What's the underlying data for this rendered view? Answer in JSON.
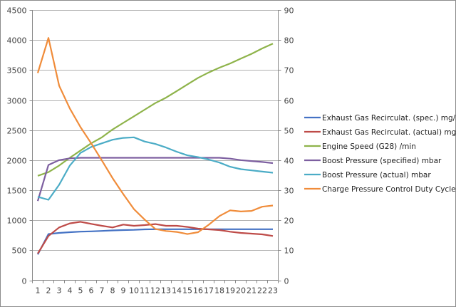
{
  "chart_data": {
    "type": "line",
    "title": "",
    "xlabel": "",
    "ylabel": "",
    "categories": [
      "1",
      "2",
      "3",
      "4",
      "5",
      "6",
      "7",
      "8",
      "9",
      "10",
      "11",
      "12",
      "13",
      "14",
      "15",
      "16",
      "17",
      "18",
      "19",
      "20",
      "21",
      "22",
      "23"
    ],
    "ylim": [
      0,
      4500
    ],
    "yticks": [
      "0",
      "500",
      "1000",
      "1500",
      "2000",
      "2500",
      "3000",
      "3500",
      "4000",
      "4500"
    ],
    "y2lim": [
      0,
      90
    ],
    "y2ticks": [
      "0",
      "10",
      "20",
      "30",
      "40",
      "50",
      "60",
      "70",
      "80",
      "90"
    ],
    "grid": true,
    "legend_position": "right",
    "series": [
      {
        "name": "Exhaust Gas Recirculat. (spec.)  mg/str",
        "color": "#4472c4",
        "axis": "left",
        "values": [
          430,
          770,
          789,
          800,
          810,
          815,
          822,
          830,
          836,
          840,
          848,
          850,
          850,
          850,
          850,
          850,
          850,
          850,
          850,
          850,
          850,
          850,
          850
        ]
      },
      {
        "name": "Exhaust Gas Recirculat. (actual)  mg/str",
        "color": "#be4b48",
        "axis": "left",
        "values": [
          445,
          738,
          880,
          947,
          974,
          939,
          907,
          880,
          927,
          907,
          919,
          935,
          907,
          907,
          888,
          860,
          848,
          836,
          809,
          789,
          777,
          765,
          738
        ]
      },
      {
        "name": "Engine Speed (G28)  /min",
        "color": "#8eb34a",
        "axis": "left",
        "values": [
          1740,
          1800,
          1910,
          2040,
          2160,
          2280,
          2380,
          2510,
          2620,
          2730,
          2840,
          2950,
          3040,
          3150,
          3260,
          3370,
          3460,
          3540,
          3610,
          3690,
          3770,
          3860,
          3940
        ]
      },
      {
        "name": "Boost Pressure (specified)  mbar",
        "color": "#7d5fa0",
        "axis": "left",
        "values": [
          1320,
          1920,
          2000,
          2030,
          2040,
          2040,
          2040,
          2040,
          2040,
          2040,
          2040,
          2040,
          2040,
          2040,
          2040,
          2040,
          2040,
          2040,
          2025,
          2000,
          1985,
          1970,
          1950
        ]
      },
      {
        "name": "Boost Pressure (actual)  mbar",
        "color": "#4bacc6",
        "axis": "left",
        "values": [
          1390,
          1340,
          1590,
          1910,
          2120,
          2220,
          2280,
          2340,
          2370,
          2380,
          2310,
          2270,
          2210,
          2140,
          2080,
          2050,
          2010,
          1960,
          1890,
          1850,
          1830,
          1810,
          1790
        ]
      },
      {
        "name": "Charge Pressure Control Duty Cycle  %",
        "color": "#f08c3a",
        "axis": "right",
        "values": [
          69,
          80.7,
          64.8,
          57.2,
          51,
          45.6,
          39.9,
          34,
          28.7,
          23.7,
          20.2,
          17.1,
          16.4,
          16.1,
          15.4,
          16,
          18.5,
          21.4,
          23.3,
          22.9,
          23.1,
          24.5,
          24.9
        ]
      }
    ]
  }
}
